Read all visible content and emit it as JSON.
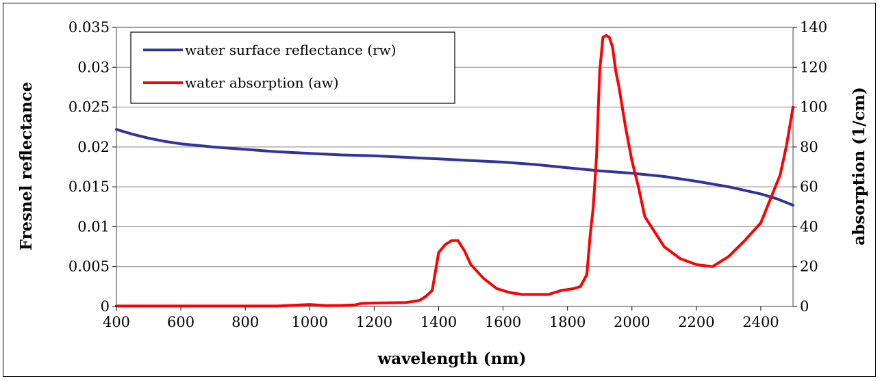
{
  "chart_data": {
    "type": "line",
    "xlabel": "wavelength (nm)",
    "ylabel": "Fresnel reflectance",
    "y2label": "absorption (1/cm)",
    "xlim": [
      400,
      2500
    ],
    "ylim": [
      0,
      0.035
    ],
    "y2lim": [
      0,
      140
    ],
    "xticks": [
      "400",
      "600",
      "800",
      "1000",
      "1200",
      "1400",
      "1600",
      "1800",
      "2000",
      "2200",
      "2400"
    ],
    "yticks": [
      "0",
      "0.005",
      "0.01",
      "0.015",
      "0.02",
      "0.025",
      "0.03",
      "0.035"
    ],
    "y2ticks": [
      "0",
      "20",
      "40",
      "60",
      "80",
      "100",
      "120",
      "140"
    ],
    "grid": "horizontal",
    "legend_position": "top-left",
    "series": [
      {
        "name": "water surface reflectance (rw)",
        "axis": "left",
        "color": "#333399",
        "x": [
          400,
          450,
          500,
          550,
          600,
          650,
          700,
          800,
          900,
          1000,
          1100,
          1200,
          1300,
          1400,
          1500,
          1600,
          1700,
          1800,
          1900,
          2000,
          2100,
          2200,
          2300,
          2400,
          2450,
          2500
        ],
        "y": [
          0.0222,
          0.0216,
          0.0211,
          0.0207,
          0.0204,
          0.0202,
          0.02,
          0.0197,
          0.0194,
          0.0192,
          0.019,
          0.0189,
          0.0187,
          0.0185,
          0.0183,
          0.0181,
          0.0178,
          0.0174,
          0.017,
          0.0167,
          0.0163,
          0.0157,
          0.015,
          0.0141,
          0.0135,
          0.0127
        ]
      },
      {
        "name": "water absorption (aw)",
        "axis": "right",
        "color": "#ff0000",
        "x": [
          400,
          900,
          950,
          1000,
          1050,
          1100,
          1140,
          1160,
          1200,
          1300,
          1340,
          1360,
          1380,
          1400,
          1420,
          1440,
          1460,
          1480,
          1500,
          1540,
          1580,
          1620,
          1660,
          1700,
          1740,
          1780,
          1820,
          1840,
          1860,
          1870,
          1880,
          1890,
          1900,
          1910,
          1920,
          1930,
          1940,
          1950,
          1960,
          1980,
          2000,
          2020,
          2040,
          2060,
          2080,
          2100,
          2150,
          2200,
          2250,
          2300,
          2350,
          2400,
          2440,
          2460,
          2480,
          2500
        ],
        "y": [
          0.2,
          0.2,
          0.6,
          1,
          0.4,
          0.5,
          0.8,
          1.5,
          1.7,
          2,
          3,
          5,
          8,
          27,
          31,
          33,
          33,
          28,
          21,
          14,
          9,
          7,
          6,
          6,
          6,
          8,
          9,
          10,
          16,
          35,
          50,
          75,
          118,
          135,
          136,
          135,
          130,
          118,
          110,
          90,
          73,
          60,
          45,
          40,
          35,
          30,
          24,
          21,
          20,
          25,
          33,
          42,
          58,
          66,
          81,
          100
        ]
      }
    ]
  }
}
